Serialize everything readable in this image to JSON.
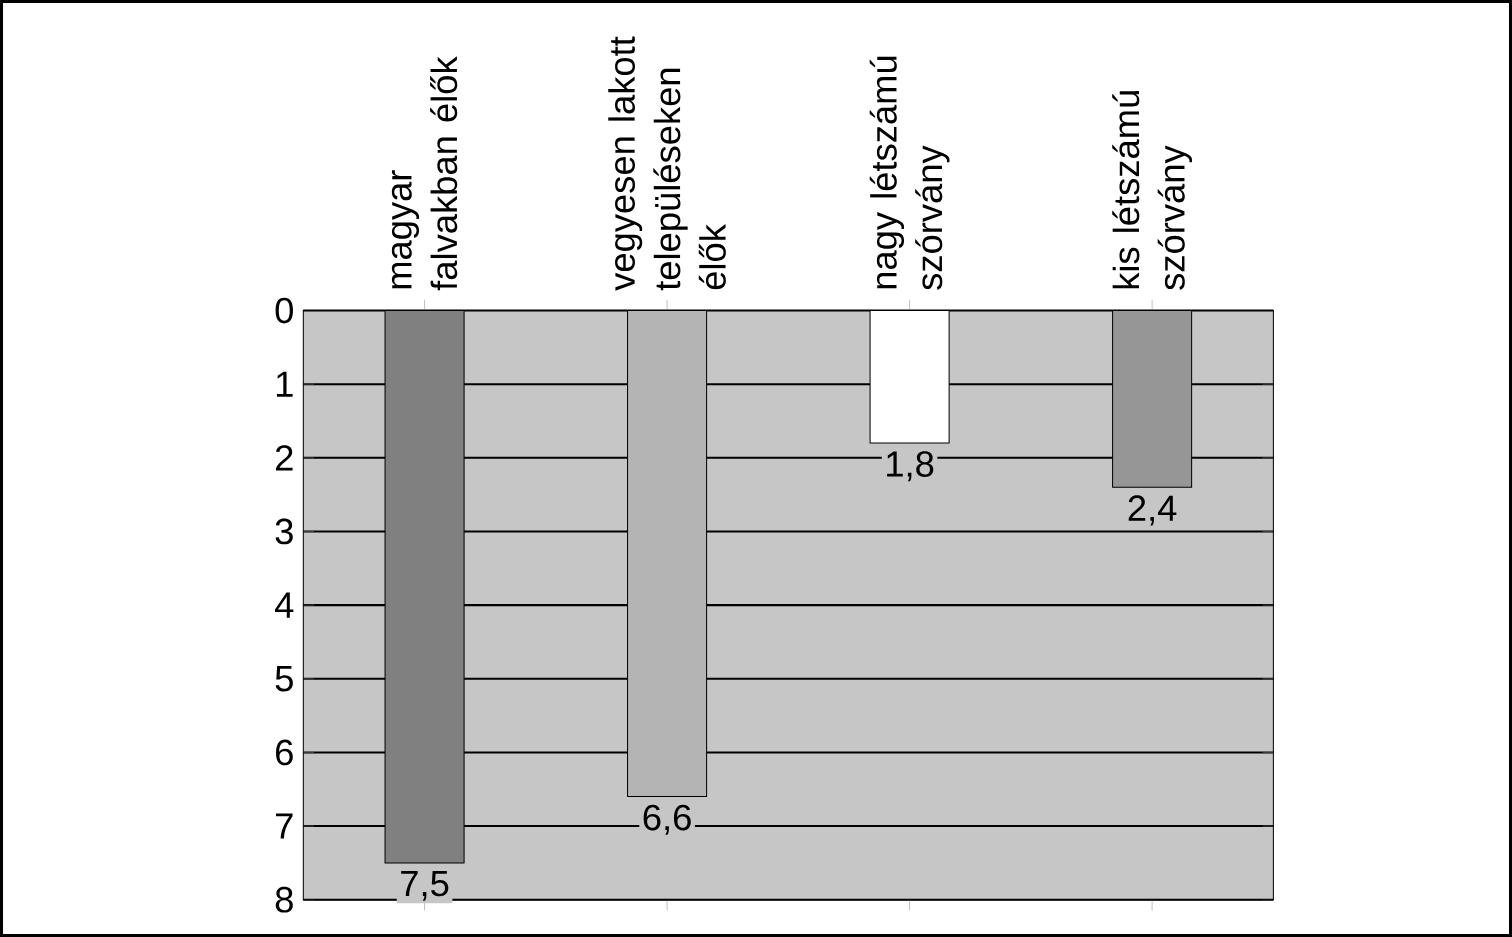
{
  "chart_data": {
    "type": "bar",
    "categories": [
      "magyar falvakban élők",
      "vegyesen lakott településeken élők",
      "nagy létszámú szórvány",
      "kis létszámú szórvány"
    ],
    "values": [
      7.5,
      6.6,
      1.8,
      2.4
    ],
    "colors": [
      "#808080",
      "#b4b4b4",
      "#ffffff",
      "#969696"
    ],
    "value_labels": [
      "7,5",
      "6,6",
      "1,8",
      "2,4"
    ],
    "ylim": [
      8,
      0
    ],
    "yticks": [
      0,
      1,
      2,
      3,
      4,
      5,
      6,
      7,
      8
    ],
    "grid": "y"
  }
}
